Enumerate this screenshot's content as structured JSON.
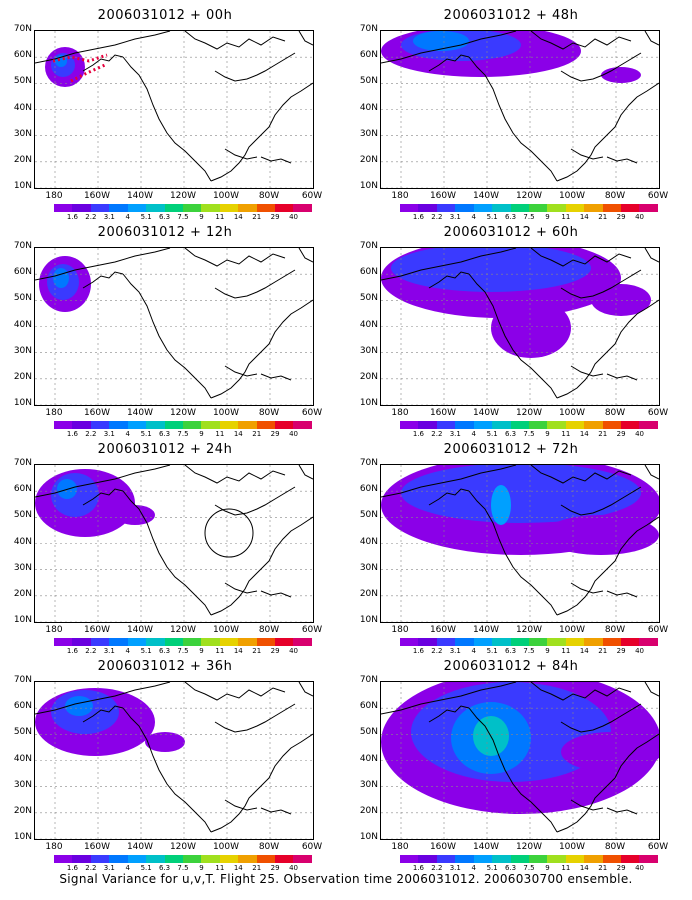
{
  "panels": [
    {
      "title": "2006031012 + 00h"
    },
    {
      "title": "2006031012 + 48h"
    },
    {
      "title": "2006031012 + 12h"
    },
    {
      "title": "2006031012 + 60h"
    },
    {
      "title": "2006031012 + 24h"
    },
    {
      "title": "2006031012 + 72h"
    },
    {
      "title": "2006031012 + 36h"
    },
    {
      "title": "2006031012 + 84h"
    }
  ],
  "axes": {
    "lat_labels": [
      "70N",
      "60N",
      "50N",
      "40N",
      "30N",
      "20N",
      "10N"
    ],
    "lon_labels": [
      "180",
      "160W",
      "140W",
      "120W",
      "100W",
      "80W",
      "60W"
    ]
  },
  "colorbar": {
    "levels": [
      "1.6",
      "2.2",
      "3.1",
      "4",
      "5.1",
      "6.3",
      "7.5",
      "9",
      "11",
      "14",
      "21",
      "29",
      "40"
    ],
    "colors": [
      "#8b00e8",
      "#6a00e0",
      "#3a3aff",
      "#0078ff",
      "#00a0ff",
      "#00c0c8",
      "#00d07a",
      "#3cd23c",
      "#a0e01e",
      "#e6d200",
      "#f0a000",
      "#f05000",
      "#e6002a",
      "#d8006e"
    ]
  },
  "footer": "Signal Variance for u,v,T. Flight 25. Observation time 2006031012. 2006030700 ensemble."
}
